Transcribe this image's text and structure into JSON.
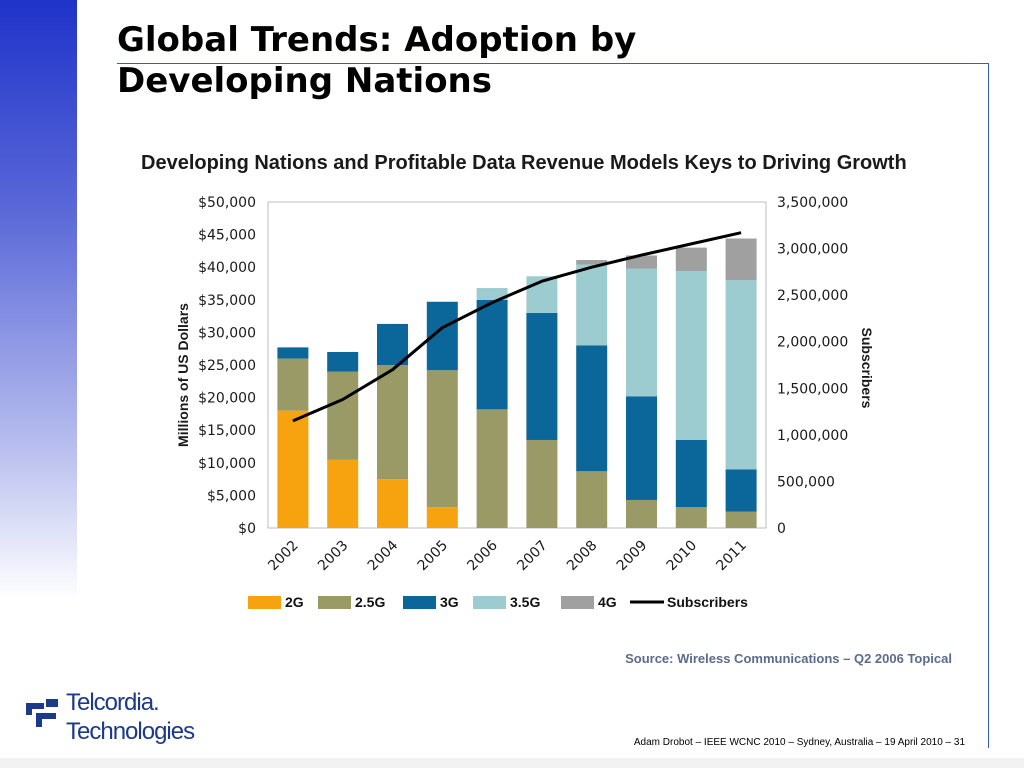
{
  "slide": {
    "title_line1": "Global Trends:  Adoption by",
    "title_line2": "Developing Nations",
    "source": "Source:  Wireless Communications – Q2 2006 Topical",
    "footer": "Adam Drobot – IEEE WCNC 2010 – Sydney, Australia – 19 April 2010  – 31",
    "logo": {
      "line1": "Telcordia.",
      "line2": "Technologies",
      "icon": "telcordia-logo-icon",
      "color": "#1c3a8a"
    }
  },
  "chart_data": {
    "type": "bar",
    "stacked": true,
    "title": "Developing Nations and Profitable Data Revenue Models Keys to Driving Growth",
    "ylabel": "Millions of US Dollars",
    "y2label": "Subscribers",
    "categories": [
      "2002",
      "2003",
      "2004",
      "2005",
      "2006",
      "2007",
      "2008",
      "2009",
      "2010",
      "2011"
    ],
    "ylim": [
      0,
      50000
    ],
    "y_ticks": [
      "$0",
      "$5,000",
      "$10,000",
      "$15,000",
      "$20,000",
      "$25,000",
      "$30,000",
      "$35,000",
      "$40,000",
      "$45,000",
      "$50,000"
    ],
    "y2lim": [
      0,
      3500000
    ],
    "y2_ticks": [
      "0",
      "500,000",
      "1,000,000",
      "1,500,000",
      "2,000,000",
      "2,500,000",
      "3,000,000",
      "3,500,000"
    ],
    "series": [
      {
        "name": "2G",
        "color": "#f7a20f",
        "values": [
          18000,
          10500,
          7500,
          3200,
          0,
          0,
          0,
          0,
          0,
          0
        ]
      },
      {
        "name": "2.5G",
        "color": "#9a9a66",
        "values": [
          8000,
          13500,
          17500,
          21000,
          18200,
          13500,
          8700,
          4300,
          3200,
          2500
        ]
      },
      {
        "name": "3G",
        "color": "#0b6699",
        "values": [
          1700,
          3000,
          6300,
          10500,
          16800,
          19500,
          19300,
          15900,
          10300,
          6500
        ]
      },
      {
        "name": "3.5G",
        "color": "#9ccbd0",
        "values": [
          0,
          0,
          0,
          0,
          1800,
          5600,
          12400,
          19600,
          25900,
          29000
        ]
      },
      {
        "name": "4G",
        "color": "#a0a0a0",
        "values": [
          0,
          0,
          0,
          0,
          0,
          0,
          700,
          2000,
          3600,
          6400
        ]
      }
    ],
    "line_series": {
      "name": "Subscribers",
      "color": "#000000",
      "axis": "right",
      "values": [
        1150000,
        1380000,
        1700000,
        2150000,
        2420000,
        2650000,
        2800000,
        2930000,
        3050000,
        3170000
      ]
    },
    "legend_position": "bottom",
    "grid": false
  }
}
